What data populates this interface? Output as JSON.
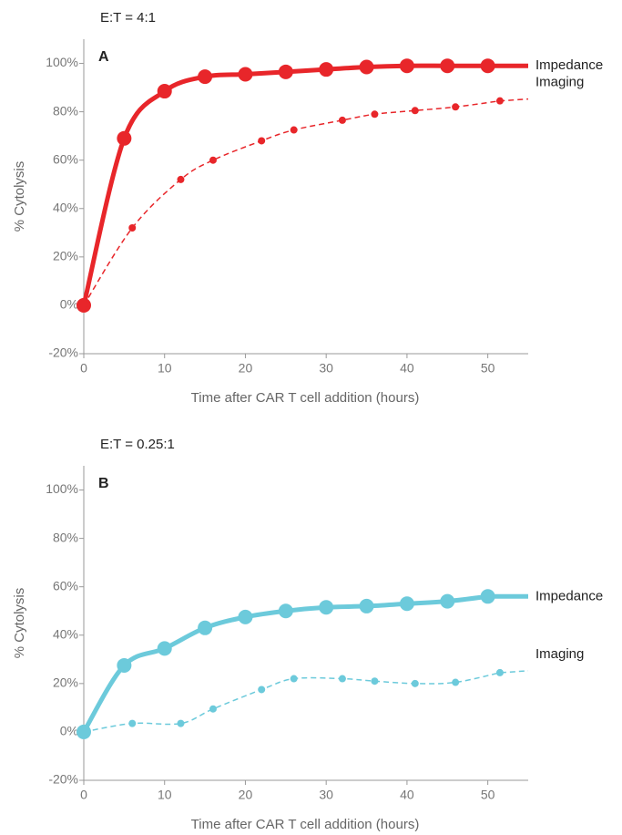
{
  "chart_data": [
    {
      "type": "line",
      "subtitle": "E:T = 4:1",
      "panel_label": "A",
      "x_label": "Time after CAR T cell addition (hours)",
      "y_label": "% Cytolysis",
      "xlim": [
        0,
        55
      ],
      "ylim": [
        -20,
        110
      ],
      "xticks": [
        0,
        10,
        20,
        30,
        40,
        50
      ],
      "yticks": [
        {
          "value": -20,
          "label": "-20%"
        },
        {
          "value": 0,
          "label": "0%"
        },
        {
          "value": 20,
          "label": "20%"
        },
        {
          "value": 40,
          "label": "40%"
        },
        {
          "value": 60,
          "label": "60%"
        },
        {
          "value": 80,
          "label": "80%"
        },
        {
          "value": 100,
          "label": "100%"
        }
      ],
      "series": [
        {
          "name": "Impedance",
          "color": "#e8262a",
          "style": "solid",
          "x": [
            0,
            5,
            10,
            15,
            20,
            25,
            30,
            35,
            40,
            45,
            50
          ],
          "values": [
            0,
            69,
            88.5,
            94.5,
            95.5,
            96.5,
            97.5,
            98.5,
            99,
            99,
            99
          ]
        },
        {
          "name": "Imaging",
          "color": "#e8262a",
          "style": "dashed",
          "x": [
            0,
            6,
            12,
            16,
            22,
            26,
            32,
            36,
            41,
            46,
            51.5
          ],
          "values": [
            0,
            32,
            52,
            60,
            68,
            72.5,
            76.5,
            79,
            80.5,
            82,
            84.5
          ]
        }
      ]
    },
    {
      "type": "line",
      "subtitle": "E:T = 0.25:1",
      "panel_label": "B",
      "x_label": "Time after CAR T cell addition (hours)",
      "y_label": "% Cytolysis",
      "xlim": [
        0,
        55
      ],
      "ylim": [
        -20,
        110
      ],
      "xticks": [
        0,
        10,
        20,
        30,
        40,
        50
      ],
      "yticks": [
        {
          "value": -20,
          "label": "-20%"
        },
        {
          "value": 0,
          "label": "0%"
        },
        {
          "value": 20,
          "label": "20%"
        },
        {
          "value": 40,
          "label": "40%"
        },
        {
          "value": 60,
          "label": "60%"
        },
        {
          "value": 80,
          "label": "80%"
        },
        {
          "value": 100,
          "label": "100%"
        }
      ],
      "series": [
        {
          "name": "Impedance",
          "color": "#6ccadb",
          "style": "solid",
          "x": [
            0,
            5,
            10,
            15,
            20,
            25,
            30,
            35,
            40,
            45,
            50
          ],
          "values": [
            0,
            27.5,
            34.5,
            43,
            47.5,
            50,
            51.5,
            52,
            53,
            54,
            56
          ]
        },
        {
          "name": "Imaging",
          "color": "#6ccadb",
          "style": "dashed",
          "x": [
            0,
            6,
            12,
            16,
            22,
            26,
            32,
            36,
            41,
            46,
            51.5
          ],
          "values": [
            0,
            3.5,
            3.5,
            9.5,
            17.5,
            22,
            22,
            21,
            20,
            20.5,
            24.5
          ]
        }
      ]
    }
  ]
}
